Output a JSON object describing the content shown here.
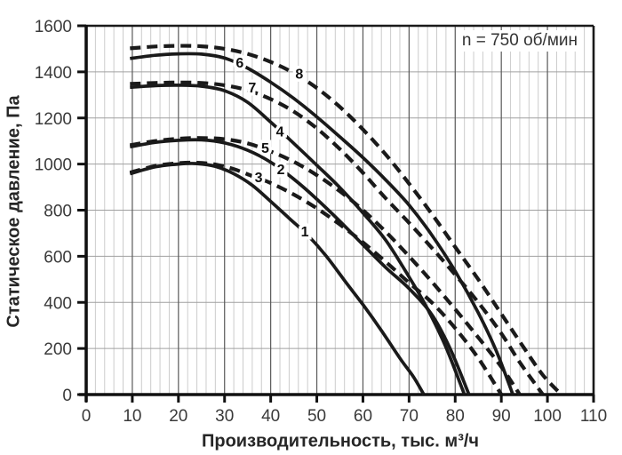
{
  "annotation": "n = 750 об/мин",
  "chart_data": {
    "type": "line",
    "title": "",
    "annotation": "n = 750 об/мин",
    "xlabel": "Производительность, тыс. м³/ч",
    "ylabel": "Статическое давление, Па",
    "xlim": [
      0,
      110
    ],
    "ylim": [
      0,
      1600
    ],
    "x_major_step": 10,
    "x_minor_step": 2,
    "y_major_step": 200,
    "grid": "minor-vertical + major",
    "legend_position": "none",
    "x_ticks": [
      "0",
      "10",
      "20",
      "30",
      "40",
      "50",
      "60",
      "70",
      "80",
      "90",
      "100",
      "110"
    ],
    "y_ticks": [
      "0",
      "200",
      "400",
      "600",
      "800",
      "1000",
      "1200",
      "1400",
      "1600"
    ],
    "line_color": "#1a1a1a",
    "series": [
      {
        "name": "1",
        "style": "solid",
        "label_at": [
          47.4,
          705
        ],
        "points": [
          [
            9.5,
            958
          ],
          [
            15,
            988
          ],
          [
            20,
            1000
          ],
          [
            24,
            1002
          ],
          [
            28,
            990
          ],
          [
            32,
            958
          ],
          [
            36,
            908
          ],
          [
            40,
            838
          ],
          [
            44,
            765
          ],
          [
            48,
            692
          ],
          [
            52,
            602
          ],
          [
            56,
            495
          ],
          [
            60,
            390
          ],
          [
            64,
            278
          ],
          [
            68,
            158
          ],
          [
            71,
            75
          ],
          [
            73.2,
            0
          ]
        ]
      },
      {
        "name": "2",
        "style": "solid",
        "label_at": [
          42.2,
          975
        ],
        "points": [
          [
            9.5,
            1075
          ],
          [
            15,
            1094
          ],
          [
            20,
            1103
          ],
          [
            25,
            1105
          ],
          [
            30,
            1092
          ],
          [
            35,
            1060
          ],
          [
            40,
            1008
          ],
          [
            45,
            935
          ],
          [
            50,
            848
          ],
          [
            55,
            752
          ],
          [
            60,
            650
          ],
          [
            65,
            550
          ],
          [
            70,
            460
          ],
          [
            75,
            345
          ],
          [
            79,
            195
          ],
          [
            83,
            0
          ]
        ]
      },
      {
        "name": "3",
        "style": "dashed",
        "label_at": [
          37.4,
          940
        ],
        "points": [
          [
            9.5,
            963
          ],
          [
            15,
            992
          ],
          [
            20,
            1004
          ],
          [
            24,
            1006
          ],
          [
            28,
            998
          ],
          [
            32,
            978
          ],
          [
            36,
            948
          ],
          [
            40,
            918
          ],
          [
            45,
            868
          ],
          [
            50,
            808
          ],
          [
            55,
            738
          ],
          [
            60,
            660
          ],
          [
            65,
            575
          ],
          [
            70,
            485
          ],
          [
            75,
            398
          ],
          [
            80,
            288
          ],
          [
            85,
            158
          ],
          [
            90,
            0
          ]
        ]
      },
      {
        "name": "4",
        "style": "solid",
        "label_at": [
          42.0,
          1140
        ],
        "points": [
          [
            9.5,
            1333
          ],
          [
            15,
            1340
          ],
          [
            20,
            1342
          ],
          [
            25,
            1338
          ],
          [
            30,
            1318
          ],
          [
            35,
            1268
          ],
          [
            40,
            1182
          ],
          [
            45,
            1090
          ],
          [
            50,
            995
          ],
          [
            55,
            898
          ],
          [
            60,
            788
          ],
          [
            65,
            668
          ],
          [
            70,
            510
          ],
          [
            74,
            372
          ],
          [
            78,
            205
          ],
          [
            82,
            0
          ]
        ]
      },
      {
        "name": "5",
        "style": "dashed",
        "label_at": [
          38.8,
          1068
        ],
        "points": [
          [
            9.5,
            1082
          ],
          [
            15,
            1100
          ],
          [
            20,
            1110
          ],
          [
            25,
            1113
          ],
          [
            30,
            1108
          ],
          [
            35,
            1090
          ],
          [
            40,
            1055
          ],
          [
            45,
            1010
          ],
          [
            50,
            952
          ],
          [
            55,
            882
          ],
          [
            60,
            800
          ],
          [
            65,
            705
          ],
          [
            70,
            600
          ],
          [
            75,
            488
          ],
          [
            80,
            370
          ],
          [
            85,
            248
          ],
          [
            90,
            120
          ],
          [
            94,
            0
          ]
        ]
      },
      {
        "name": "6",
        "style": "solid",
        "label_at": [
          33.3,
          1438
        ],
        "points": [
          [
            9.5,
            1458
          ],
          [
            15,
            1472
          ],
          [
            20,
            1478
          ],
          [
            25,
            1477
          ],
          [
            30,
            1460
          ],
          [
            35,
            1416
          ],
          [
            40,
            1355
          ],
          [
            45,
            1285
          ],
          [
            50,
            1205
          ],
          [
            55,
            1118
          ],
          [
            60,
            1028
          ],
          [
            65,
            930
          ],
          [
            70,
            822
          ],
          [
            75,
            690
          ],
          [
            80,
            535
          ],
          [
            85,
            355
          ],
          [
            89,
            185
          ],
          [
            92.5,
            0
          ]
        ]
      },
      {
        "name": "7",
        "style": "dashed",
        "label_at": [
          36.0,
          1330
        ],
        "points": [
          [
            9.5,
            1348
          ],
          [
            15,
            1352
          ],
          [
            20,
            1354
          ],
          [
            25,
            1352
          ],
          [
            30,
            1342
          ],
          [
            35,
            1320
          ],
          [
            40,
            1282
          ],
          [
            45,
            1228
          ],
          [
            50,
            1155
          ],
          [
            55,
            1065
          ],
          [
            60,
            962
          ],
          [
            65,
            850
          ],
          [
            70,
            745
          ],
          [
            75,
            635
          ],
          [
            80,
            520
          ],
          [
            85,
            400
          ],
          [
            90,
            265
          ],
          [
            94,
            140
          ],
          [
            99,
            0
          ]
        ]
      },
      {
        "name": "8",
        "style": "dashed",
        "label_at": [
          46.2,
          1390
        ],
        "points": [
          [
            9.5,
            1502
          ],
          [
            15,
            1510
          ],
          [
            20,
            1513
          ],
          [
            25,
            1511
          ],
          [
            30,
            1500
          ],
          [
            35,
            1478
          ],
          [
            40,
            1443
          ],
          [
            45,
            1395
          ],
          [
            50,
            1330
          ],
          [
            55,
            1248
          ],
          [
            60,
            1150
          ],
          [
            65,
            1040
          ],
          [
            70,
            915
          ],
          [
            75,
            782
          ],
          [
            80,
            640
          ],
          [
            85,
            500
          ],
          [
            90,
            350
          ],
          [
            95,
            200
          ],
          [
            99,
            85
          ],
          [
            103,
            0
          ]
        ]
      }
    ]
  },
  "colors": {
    "curve": "#1a1a1a",
    "axis": "#111111",
    "border": "#1a1a1a",
    "grid_minor": "#cccccc",
    "grid_major_v": "#595959",
    "grid_major_h": "#a0a0a0",
    "tick_label": "#3a3a3a",
    "title_text": "#262626",
    "background": "#ffffff"
  }
}
